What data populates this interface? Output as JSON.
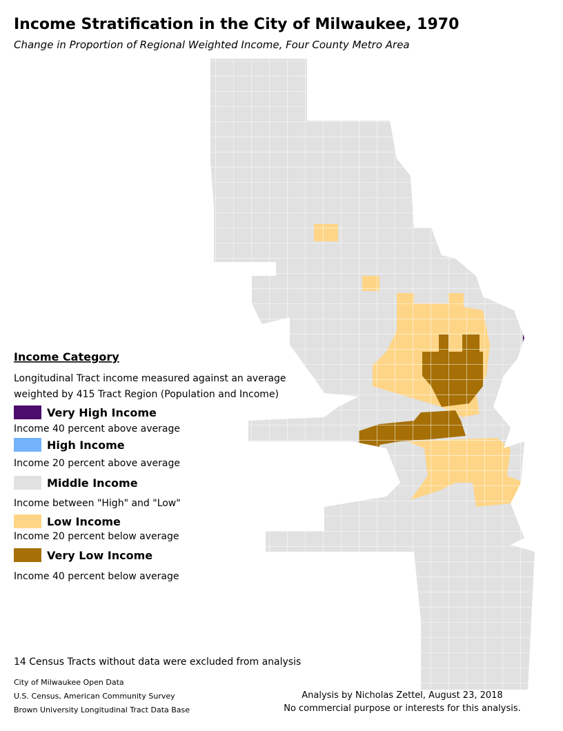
{
  "header": {
    "title": "Income Stratification in the City of Milwaukee, 1970",
    "subtitle": "Change in Proportion of Regional Weighted Income, Four County Metro Area"
  },
  "legend": {
    "title": "Income Category",
    "description": [
      "Longitudinal Tract income measured against an average",
      "weighted by 415 Tract Region (Population and Income)"
    ],
    "items": [
      {
        "label": "Very High Income",
        "description": "Income 40 percent above average",
        "color": "#4b0c6b"
      },
      {
        "label": "High Income",
        "description": "Income 20 percent above average",
        "color": "#74b3fb"
      },
      {
        "label": "Middle Income",
        "description": "Income between \"High\" and \"Low\"",
        "color": "#e1e1e1"
      },
      {
        "label": "Low Income",
        "description": "Income 20 percent below average",
        "color": "#fed586"
      },
      {
        "label": "Very Low Income",
        "description": "Income 40 percent below average",
        "color": "#a67006"
      }
    ]
  },
  "note": "14 Census Tracts without data were excluded from analysis",
  "sources": [
    "City of Milwaukee Open Data",
    "U.S. Census, American Community Survey",
    "Brown University Longitudinal Tract Data Base"
  ],
  "credits": [
    "Analysis by Nicholas Zettel, August 23, 2018",
    "No commercial purpose or interests for this analysis."
  ]
}
